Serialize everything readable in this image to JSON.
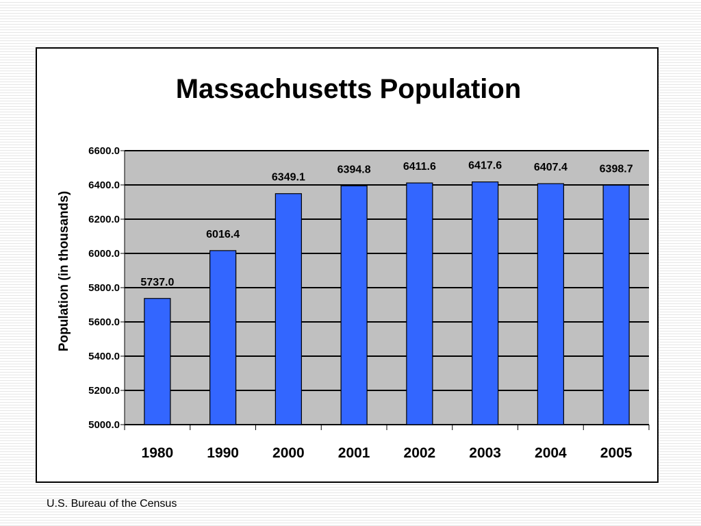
{
  "chart_data": {
    "type": "bar",
    "title": "Massachusetts Population",
    "ylabel": "Population (in thousands)",
    "xlabel": "",
    "categories": [
      "1980",
      "1990",
      "2000",
      "2001",
      "2002",
      "2003",
      "2004",
      "2005"
    ],
    "values": [
      5737.0,
      6016.4,
      6349.1,
      6394.8,
      6411.6,
      6417.6,
      6407.4,
      6398.7
    ],
    "data_labels": [
      "5737.0",
      "6016.4",
      "6349.1",
      "6394.8",
      "6411.6",
      "6417.6",
      "6407.4",
      "6398.7"
    ],
    "ylim": [
      5000,
      6600
    ],
    "yticks": [
      "5000.0",
      "5200.0",
      "5400.0",
      "5600.0",
      "5800.0",
      "6000.0",
      "6200.0",
      "6400.0",
      "6600.0"
    ],
    "grid": true,
    "legend": "none",
    "colors": {
      "bar": "#3366ff",
      "plot_background": "#c0c0c0",
      "gridline": "#000000"
    }
  },
  "source": "U.S. Bureau of the Census"
}
